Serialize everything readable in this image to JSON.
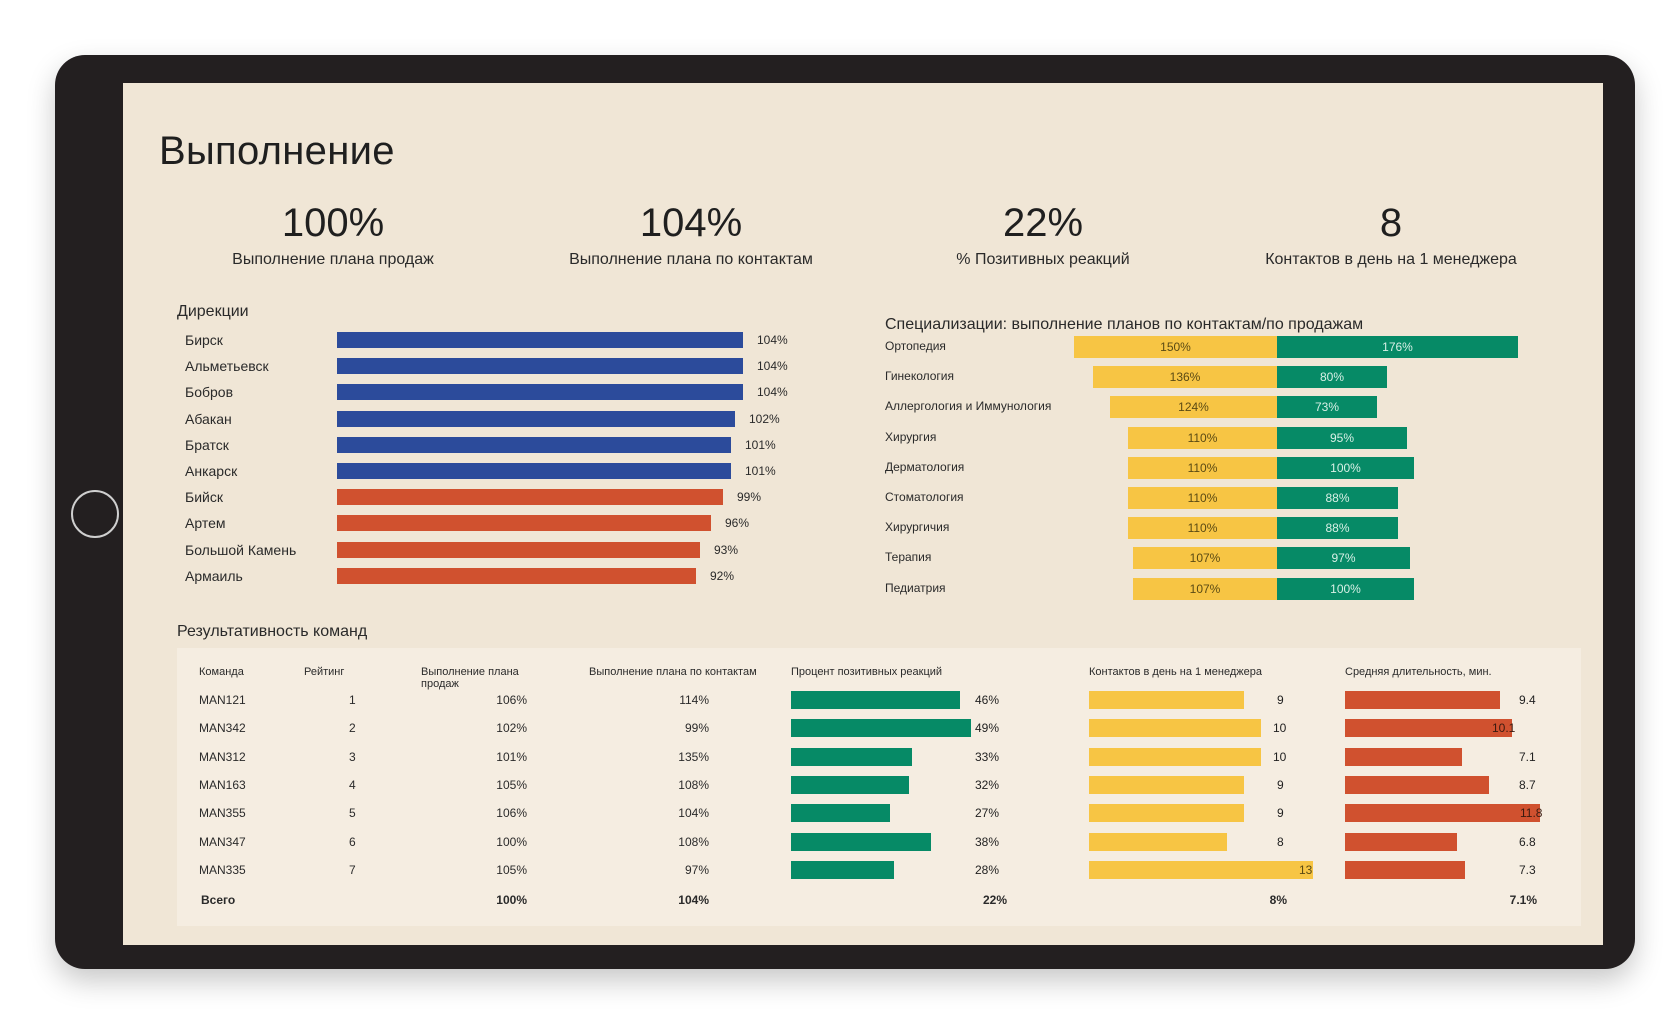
{
  "title": "Выполнение",
  "kpis": [
    {
      "value": "100%",
      "label": "Выполнение плана продаж"
    },
    {
      "value": "104%",
      "label": "Выполнение плана по контактам"
    },
    {
      "value": "22%",
      "label": "% Позитивных реакций"
    },
    {
      "value": "8",
      "label": "Контактов в день на 1 менеджера"
    }
  ],
  "colors": {
    "blue": "#2c4b9b",
    "red": "#d0512f",
    "yellow": "#f7c544",
    "green": "#068a66",
    "background": "#f0e6d6",
    "device": "#231f20"
  },
  "directions": {
    "title": "Дирекции",
    "rows": [
      {
        "name": "Бирск",
        "value": 104,
        "label": "104%",
        "color": "blue"
      },
      {
        "name": "Альметьевск",
        "value": 104,
        "label": "104%",
        "color": "blue"
      },
      {
        "name": "Бобров",
        "value": 104,
        "label": "104%",
        "color": "blue"
      },
      {
        "name": "Абакан",
        "value": 102,
        "label": "102%",
        "color": "blue"
      },
      {
        "name": "Братск",
        "value": 101,
        "label": "101%",
        "color": "blue"
      },
      {
        "name": "Анкарск",
        "value": 101,
        "label": "101%",
        "color": "blue"
      },
      {
        "name": "Бийск",
        "value": 99,
        "label": "99%",
        "color": "red"
      },
      {
        "name": "Артем",
        "value": 96,
        "label": "96%",
        "color": "red"
      },
      {
        "name": "Большой Камень",
        "value": 93,
        "label": "93%",
        "color": "red"
      },
      {
        "name": "Армаиль",
        "value": 92,
        "label": "92%",
        "color": "red"
      }
    ]
  },
  "specializations": {
    "title": "Специализации: выполнение планов по контактам/по продажам",
    "rows": [
      {
        "name": "Ортопедия",
        "contacts": 150,
        "contacts_label": "150%",
        "sales": 176,
        "sales_label": "176%"
      },
      {
        "name": "Гинекология",
        "contacts": 136,
        "contacts_label": "136%",
        "sales": 80,
        "sales_label": "80%"
      },
      {
        "name": "Аллергология и Иммунология",
        "contacts": 124,
        "contacts_label": "124%",
        "sales": 73,
        "sales_label": "73%"
      },
      {
        "name": "Хирургия",
        "contacts": 110,
        "contacts_label": "110%",
        "sales": 95,
        "sales_label": "95%"
      },
      {
        "name": "Дерматология",
        "contacts": 110,
        "contacts_label": "110%",
        "sales": 100,
        "sales_label": "100%"
      },
      {
        "name": "Стоматология",
        "contacts": 110,
        "contacts_label": "110%",
        "sales": 88,
        "sales_label": "88%"
      },
      {
        "name": "Хирургичия",
        "contacts": 110,
        "contacts_label": "110%",
        "sales": 88,
        "sales_label": "88%"
      },
      {
        "name": "Терапия",
        "contacts": 107,
        "contacts_label": "107%",
        "sales": 97,
        "sales_label": "97%"
      },
      {
        "name": "Педиатрия",
        "contacts": 107,
        "contacts_label": "107%",
        "sales": 100,
        "sales_label": "100%"
      }
    ]
  },
  "teams": {
    "title": "Результативность команд",
    "headers": {
      "team": "Команда",
      "rank": "Рейтинг",
      "sales_plan_1": "Выполнение плана",
      "sales_plan_2": "продаж",
      "contacts_plan": "Выполнение плана по контактам",
      "positive": "Процент позитивных реакций",
      "contacts_day": "Контактов в день на 1 менеджера",
      "duration": "Средняя длительность, мин."
    },
    "rows": [
      {
        "team": "MAN121",
        "rank": "1",
        "sales": "106%",
        "contacts": "114%",
        "positive": 46,
        "positive_label": "46%",
        "per_day": 9,
        "per_day_label": "9",
        "duration": 9.4,
        "duration_label": "9.4"
      },
      {
        "team": "MAN342",
        "rank": "2",
        "sales": "102%",
        "contacts": "99%",
        "positive": 49,
        "positive_label": "49%",
        "per_day": 10,
        "per_day_label": "10",
        "duration": 10.1,
        "duration_label": "10.1"
      },
      {
        "team": "MAN312",
        "rank": "3",
        "sales": "101%",
        "contacts": "135%",
        "positive": 33,
        "positive_label": "33%",
        "per_day": 10,
        "per_day_label": "10",
        "duration": 7.1,
        "duration_label": "7.1"
      },
      {
        "team": "MAN163",
        "rank": "4",
        "sales": "105%",
        "contacts": "108%",
        "positive": 32,
        "positive_label": "32%",
        "per_day": 9,
        "per_day_label": "9",
        "duration": 8.7,
        "duration_label": "8.7"
      },
      {
        "team": "MAN355",
        "rank": "5",
        "sales": "106%",
        "contacts": "104%",
        "positive": 27,
        "positive_label": "27%",
        "per_day": 9,
        "per_day_label": "9",
        "duration": 11.8,
        "duration_label": "11.8"
      },
      {
        "team": "MAN347",
        "rank": "6",
        "sales": "100%",
        "contacts": "108%",
        "positive": 38,
        "positive_label": "38%",
        "per_day": 8,
        "per_day_label": "8",
        "duration": 6.8,
        "duration_label": "6.8"
      },
      {
        "team": "MAN335",
        "rank": "7",
        "sales": "105%",
        "contacts": "97%",
        "positive": 28,
        "positive_label": "28%",
        "per_day": 13,
        "per_day_label": "13",
        "duration": 7.3,
        "duration_label": "7.3"
      }
    ],
    "total": {
      "label": "Всего",
      "sales": "100%",
      "contacts": "104%",
      "positive": "22%",
      "per_day": "8%",
      "duration": "7.1%"
    }
  },
  "chart_data": [
    {
      "type": "bar",
      "title": "Дирекции",
      "categories": [
        "Бирск",
        "Альметьевск",
        "Бобров",
        "Абакан",
        "Братск",
        "Анкарск",
        "Бийск",
        "Артем",
        "Большой Камень",
        "Армаиль"
      ],
      "values": [
        104,
        104,
        104,
        102,
        101,
        101,
        99,
        96,
        93,
        92
      ]
    },
    {
      "type": "bar",
      "title": "Специализации: выполнение планов по контактам/по продажам",
      "categories": [
        "Ортопедия",
        "Гинекология",
        "Аллергология и Иммунология",
        "Хирургия",
        "Дерматология",
        "Стоматология",
        "Хирургичия",
        "Терапия",
        "Педиатрия"
      ],
      "series": [
        {
          "values": [
            150,
            136,
            124,
            110,
            110,
            110,
            110,
            107,
            107
          ]
        },
        {
          "values": [
            176,
            80,
            73,
            95,
            100,
            88,
            88,
            97,
            100
          ]
        }
      ]
    },
    {
      "type": "table",
      "title": "Результативность команд",
      "categories": [
        "MAN121",
        "MAN342",
        "MAN312",
        "MAN163",
        "MAN355",
        "MAN347",
        "MAN335"
      ],
      "series": [
        {
          "name": "Процент позитивных реакций",
          "values": [
            46,
            49,
            33,
            32,
            27,
            38,
            28
          ]
        },
        {
          "name": "Контактов в день на 1 менеджера",
          "values": [
            9,
            10,
            10,
            9,
            9,
            8,
            13
          ]
        },
        {
          "name": "Средняя длительность, мин.",
          "values": [
            9.4,
            10.1,
            7.1,
            8.7,
            11.8,
            6.8,
            7.3
          ]
        }
      ]
    }
  ]
}
